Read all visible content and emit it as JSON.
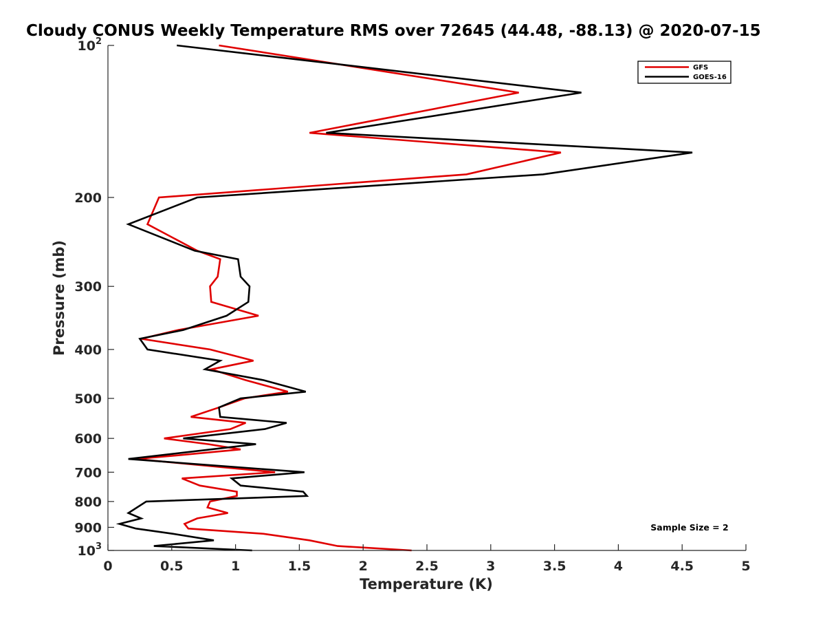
{
  "chart_data": {
    "type": "line",
    "title": "Cloudy CONUS Weekly Temperature RMS over 72645 (44.48, -88.13) @ 2020-07-15",
    "xlabel": "Temperature (K)",
    "ylabel": "Pressure (mb)",
    "xlim": [
      0,
      5
    ],
    "ylim": [
      100,
      1000
    ],
    "y_scale": "log",
    "y_reversed": true,
    "grid": false,
    "legend_position": "top-right",
    "annotation": "Sample Size = 2",
    "x_ticks": [
      "0",
      "0.5",
      "1",
      "1.5",
      "2",
      "2.5",
      "3",
      "3.5",
      "4",
      "4.5",
      "5"
    ],
    "y_tick_values": [
      100,
      200,
      300,
      400,
      500,
      600,
      700,
      800,
      900,
      1000
    ],
    "y_tick_labels": [
      {
        "base": "10",
        "exp": "2"
      },
      {
        "base": "200",
        "exp": ""
      },
      {
        "base": "300",
        "exp": ""
      },
      {
        "base": "400",
        "exp": ""
      },
      {
        "base": "500",
        "exp": ""
      },
      {
        "base": "600",
        "exp": ""
      },
      {
        "base": "700",
        "exp": ""
      },
      {
        "base": "800",
        "exp": ""
      },
      {
        "base": "900",
        "exp": ""
      },
      {
        "base": "10",
        "exp": "3"
      }
    ],
    "series": [
      {
        "name": "GFS",
        "color": "#e00000",
        "points": [
          [
            0.87,
            100
          ],
          [
            3.22,
            124
          ],
          [
            1.58,
            149
          ],
          [
            3.55,
            163
          ],
          [
            2.81,
            180
          ],
          [
            0.4,
            200
          ],
          [
            0.31,
            226
          ],
          [
            0.7,
            255
          ],
          [
            0.88,
            265
          ],
          [
            0.86,
            287
          ],
          [
            0.8,
            300
          ],
          [
            0.81,
            322
          ],
          [
            1.18,
            343
          ],
          [
            0.55,
            366
          ],
          [
            0.26,
            381
          ],
          [
            0.8,
            400
          ],
          [
            1.14,
            421
          ],
          [
            0.81,
            438
          ],
          [
            1.08,
            460
          ],
          [
            1.41,
            485
          ],
          [
            1.07,
            500
          ],
          [
            0.87,
            521
          ],
          [
            0.65,
            544
          ],
          [
            1.08,
            559
          ],
          [
            0.96,
            575
          ],
          [
            0.44,
            600
          ],
          [
            0.79,
            616
          ],
          [
            1.04,
            631
          ],
          [
            0.58,
            647
          ],
          [
            0.22,
            659
          ],
          [
            1.31,
            700
          ],
          [
            0.58,
            720
          ],
          [
            0.72,
            744
          ],
          [
            1.01,
            765
          ],
          [
            1.01,
            780
          ],
          [
            0.8,
            800
          ],
          [
            0.78,
            822
          ],
          [
            0.94,
            843
          ],
          [
            0.7,
            864
          ],
          [
            0.6,
            886
          ],
          [
            0.63,
            905
          ],
          [
            1.22,
            927
          ],
          [
            1.58,
            955
          ],
          [
            1.8,
            980
          ],
          [
            2.38,
            1000
          ]
        ]
      },
      {
        "name": "GOES-16",
        "color": "#000000",
        "points": [
          [
            0.54,
            100
          ],
          [
            3.71,
            124
          ],
          [
            1.71,
            149
          ],
          [
            4.58,
            163
          ],
          [
            3.41,
            180
          ],
          [
            0.7,
            200
          ],
          [
            0.16,
            226
          ],
          [
            0.68,
            255
          ],
          [
            1.02,
            265
          ],
          [
            1.04,
            287
          ],
          [
            1.11,
            300
          ],
          [
            1.1,
            322
          ],
          [
            0.93,
            343
          ],
          [
            0.59,
            366
          ],
          [
            0.25,
            381
          ],
          [
            0.31,
            400
          ],
          [
            0.88,
            421
          ],
          [
            0.76,
            438
          ],
          [
            1.22,
            460
          ],
          [
            1.55,
            485
          ],
          [
            1.04,
            500
          ],
          [
            0.87,
            521
          ],
          [
            0.88,
            544
          ],
          [
            1.4,
            559
          ],
          [
            1.23,
            575
          ],
          [
            0.59,
            600
          ],
          [
            1.16,
            616
          ],
          [
            0.16,
            659
          ],
          [
            1.54,
            700
          ],
          [
            0.97,
            720
          ],
          [
            1.04,
            744
          ],
          [
            1.53,
            765
          ],
          [
            1.56,
            780
          ],
          [
            0.3,
            800
          ],
          [
            0.16,
            843
          ],
          [
            0.26,
            864
          ],
          [
            0.09,
            886
          ],
          [
            0.22,
            905
          ],
          [
            0.51,
            927
          ],
          [
            0.83,
            955
          ],
          [
            0.36,
            980
          ],
          [
            1.13,
            1000
          ]
        ]
      }
    ]
  }
}
